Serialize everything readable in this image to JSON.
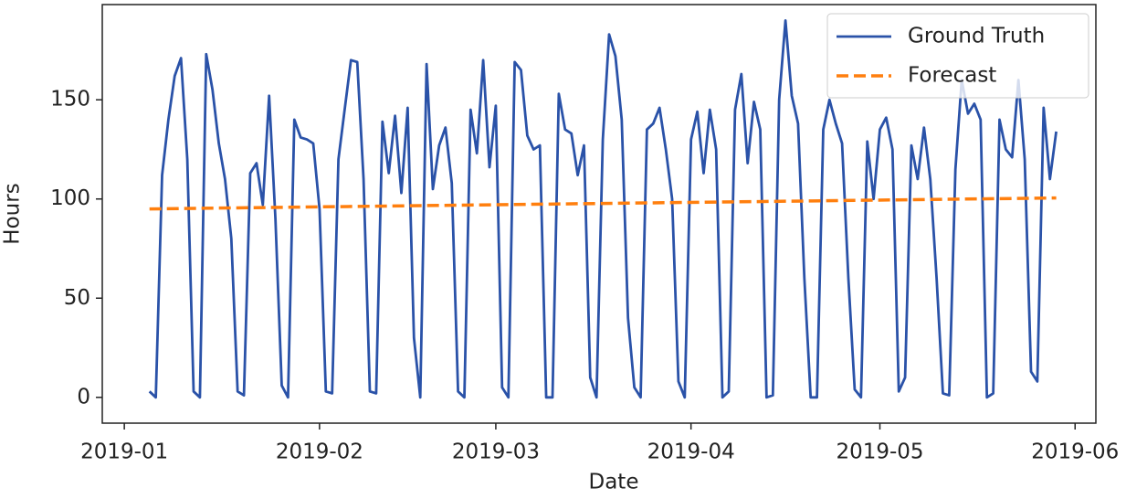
{
  "chart_data": {
    "type": "line",
    "xlabel": "Date",
    "ylabel": "Hours",
    "xlim": [
      -2.5,
      155.3
    ],
    "ylim": [
      -13,
      198
    ],
    "xticks": [
      {
        "value": 1,
        "label": "2019-01"
      },
      {
        "value": 32,
        "label": "2019-02"
      },
      {
        "value": 60,
        "label": "2019-03"
      },
      {
        "value": 91,
        "label": "2019-04"
      },
      {
        "value": 121,
        "label": "2019-05"
      },
      {
        "value": 152,
        "label": "2019-06"
      }
    ],
    "yticks": [
      0,
      50,
      100,
      150
    ],
    "legend": "upper right",
    "series": [
      {
        "name": "Ground Truth",
        "color": "#2a52a8",
        "dash": "solid",
        "x": [
          5,
          6,
          7,
          8,
          9,
          10,
          11,
          12,
          13,
          14,
          15,
          16,
          17,
          18,
          19,
          20,
          21,
          22,
          23,
          24,
          25,
          26,
          27,
          28,
          29,
          30,
          31,
          32,
          33,
          34,
          35,
          36,
          37,
          38,
          39,
          40,
          41,
          42,
          43,
          44,
          45,
          46,
          47,
          48,
          49,
          50,
          51,
          52,
          53,
          54,
          55,
          56,
          57,
          58,
          59,
          60,
          61,
          62,
          63,
          64,
          65,
          66,
          67,
          68,
          69,
          70,
          71,
          72,
          73,
          74,
          75,
          76,
          77,
          78,
          79,
          80,
          81,
          82,
          83,
          84,
          85,
          86,
          87,
          88,
          89,
          90,
          91,
          92,
          93,
          94,
          95,
          96,
          97,
          98,
          99,
          100,
          101,
          102,
          103,
          104,
          105,
          106,
          107,
          108,
          109,
          110,
          111,
          112,
          113,
          114,
          115,
          116,
          117,
          118,
          119,
          120,
          121,
          122,
          123,
          124,
          125,
          126,
          127,
          128,
          129,
          130,
          131,
          132,
          133,
          134,
          135,
          136,
          137,
          138,
          139,
          140,
          141,
          142,
          143,
          144,
          145,
          146,
          147,
          148,
          149
        ],
        "values": [
          3,
          0,
          112,
          140,
          162,
          171,
          120,
          3,
          0,
          173,
          155,
          128,
          110,
          80,
          3,
          1,
          113,
          118,
          97,
          152,
          90,
          6,
          0,
          140,
          131,
          130,
          128,
          95,
          3,
          2,
          120,
          145,
          170,
          169,
          110,
          3,
          2,
          139,
          113,
          142,
          103,
          146,
          30,
          0,
          168,
          105,
          127,
          136,
          108,
          3,
          0,
          145,
          123,
          170,
          116,
          147,
          5,
          0,
          169,
          165,
          132,
          125,
          127,
          0,
          0,
          153,
          135,
          133,
          112,
          127,
          10,
          0,
          130,
          183,
          172,
          140,
          40,
          5,
          0,
          135,
          138,
          146,
          125,
          100,
          8,
          0,
          130,
          144,
          113,
          145,
          125,
          0,
          3,
          145,
          163,
          118,
          149,
          135,
          0,
          1,
          150,
          190,
          152,
          138,
          60,
          0,
          0,
          135,
          150,
          138,
          128,
          60,
          4,
          0,
          129,
          100,
          135,
          141,
          125,
          3,
          10,
          127,
          110,
          136,
          110,
          60,
          2,
          1,
          115,
          160,
          143,
          148,
          140,
          0,
          2,
          140,
          125,
          121,
          160,
          120,
          13,
          8,
          146,
          110,
          134
        ]
      },
      {
        "name": "Forecast",
        "color": "#ff7f0e",
        "dash": "dashed",
        "x": [
          5,
          149
        ],
        "values": [
          95,
          100.5
        ]
      }
    ]
  }
}
